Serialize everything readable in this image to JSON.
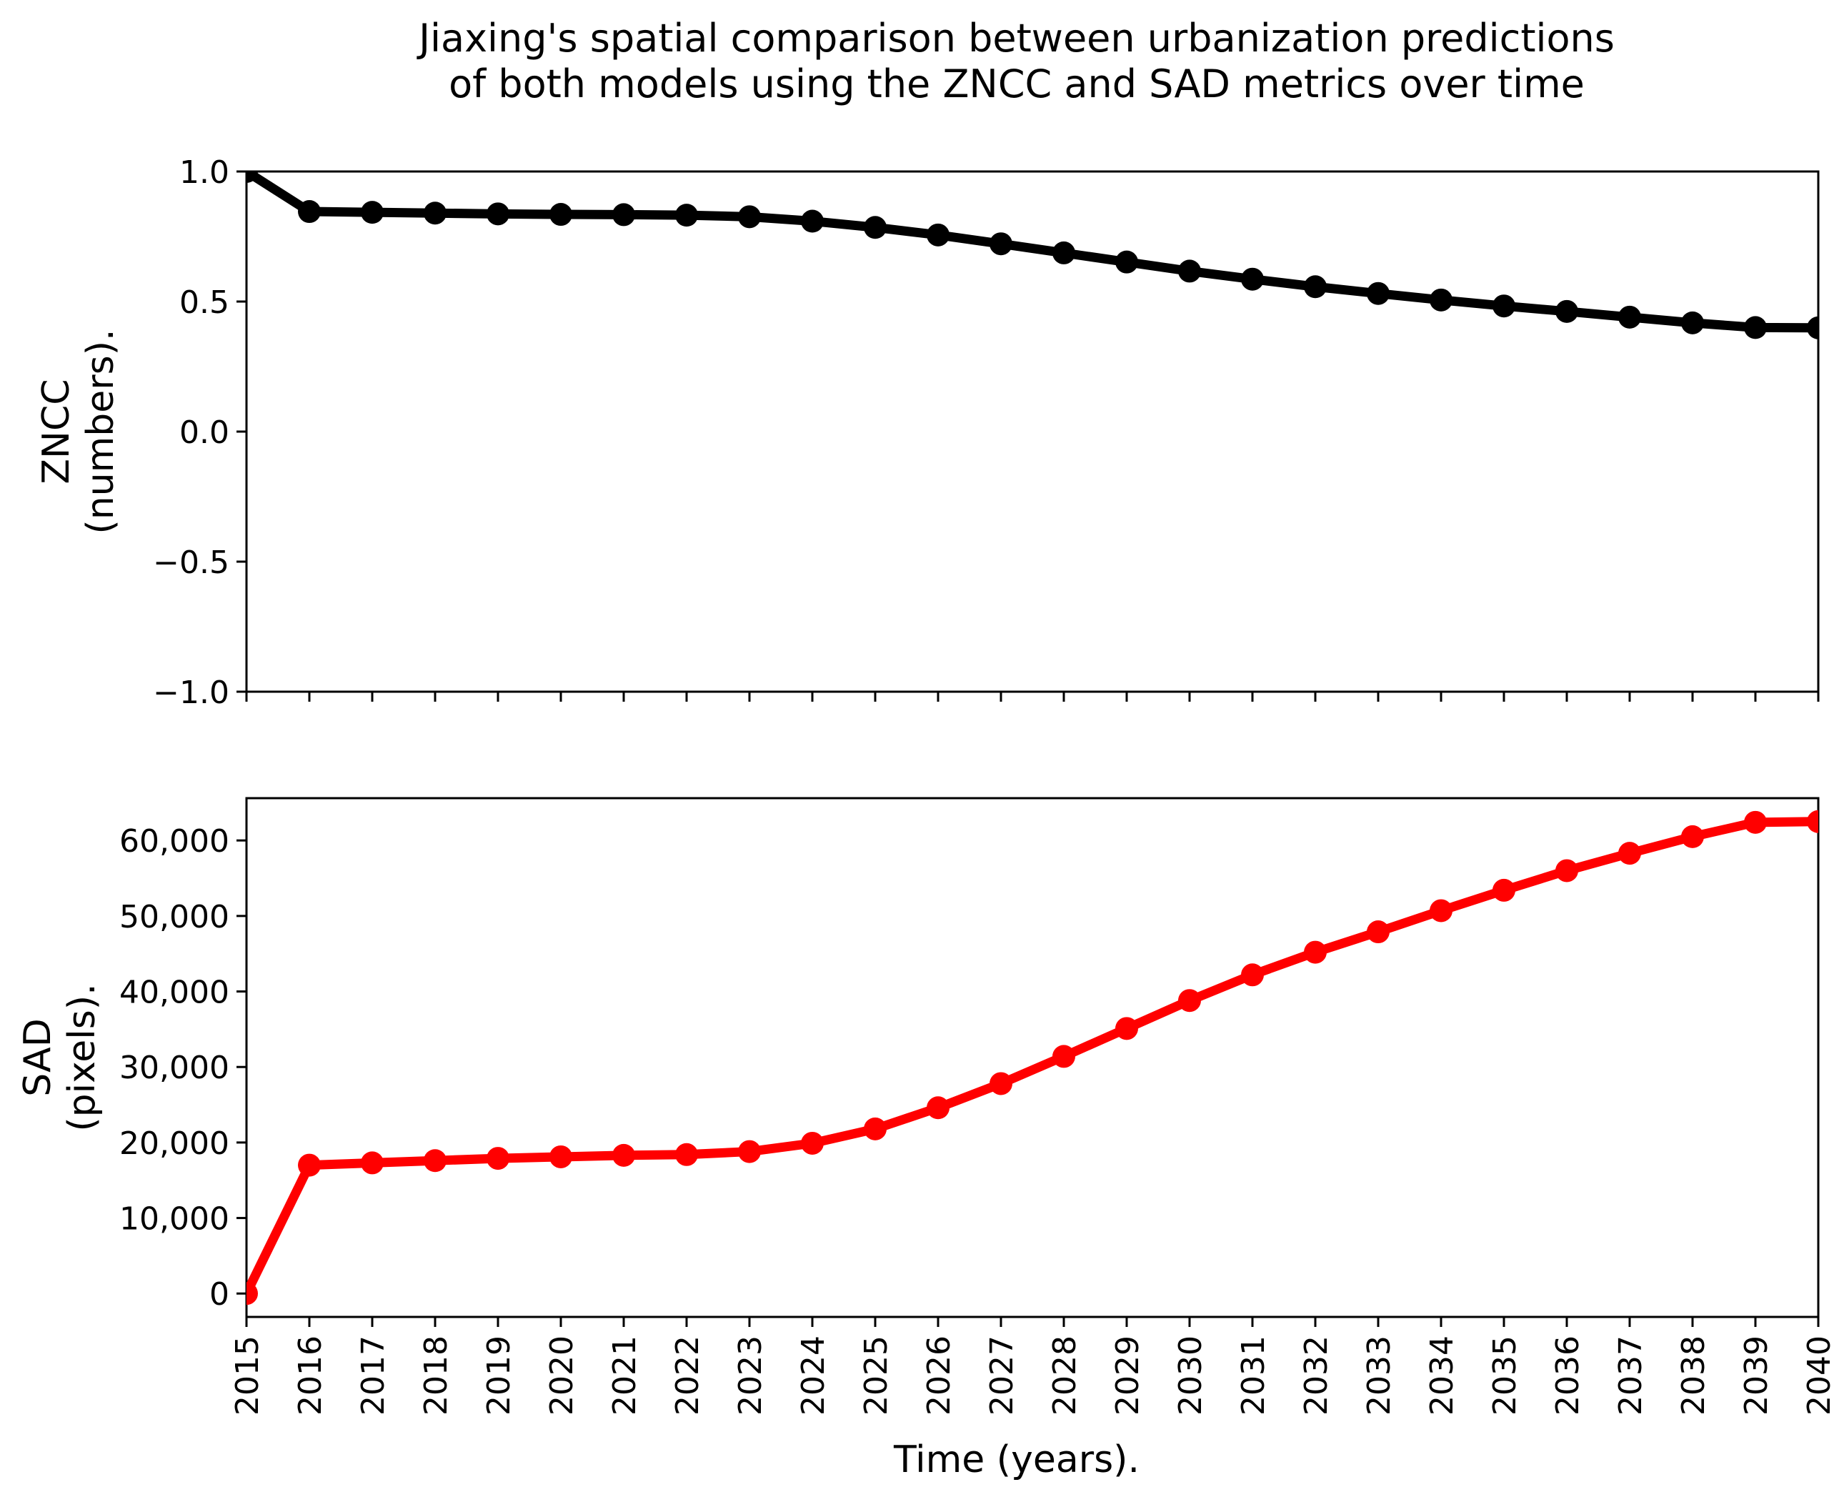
{
  "title_lines": [
    "Jiaxing's spatial comparison between urbanization predictions",
    "of both models using the ZNCC and SAD metrics over time"
  ],
  "xlabel": "Time (years).",
  "colors": {
    "zncc": "#000000",
    "sad": "#ff0000",
    "axes": "#000000"
  },
  "chart_data": [
    {
      "type": "line",
      "name": "zncc-panel",
      "ylabel_lines": [
        "ZNCC",
        "(numbers)."
      ],
      "x": [
        2015,
        2016,
        2017,
        2018,
        2019,
        2020,
        2021,
        2022,
        2023,
        2024,
        2025,
        2026,
        2027,
        2028,
        2029,
        2030,
        2031,
        2032,
        2033,
        2034,
        2035,
        2036,
        2037,
        2038,
        2039,
        2040
      ],
      "values": [
        1.0,
        0.846,
        0.843,
        0.84,
        0.837,
        0.835,
        0.834,
        0.832,
        0.826,
        0.809,
        0.785,
        0.756,
        0.722,
        0.687,
        0.652,
        0.617,
        0.586,
        0.557,
        0.531,
        0.506,
        0.483,
        0.462,
        0.44,
        0.418,
        0.4,
        0.399
      ],
      "xlim": [
        2015,
        2040
      ],
      "ylim": [
        -1.0,
        1.0
      ],
      "yticks": [
        -1.0,
        -0.5,
        0.0,
        0.5,
        1.0
      ],
      "ytick_labels": [
        "−1.0",
        "−0.5",
        "0.0",
        "0.5",
        "1.0"
      ],
      "show_xtick_labels": false
    },
    {
      "type": "line",
      "name": "sad-panel",
      "ylabel_lines": [
        "SAD",
        "(pixels)."
      ],
      "x": [
        2015,
        2016,
        2017,
        2018,
        2019,
        2020,
        2021,
        2022,
        2023,
        2024,
        2025,
        2026,
        2027,
        2028,
        2029,
        2030,
        2031,
        2032,
        2033,
        2034,
        2035,
        2036,
        2037,
        2038,
        2039,
        2040
      ],
      "values": [
        0,
        17000,
        17300,
        17600,
        17900,
        18100,
        18300,
        18400,
        18800,
        19900,
        21800,
        24600,
        27800,
        31400,
        35100,
        38800,
        42200,
        45200,
        47900,
        50700,
        53400,
        56000,
        58300,
        60500,
        62400,
        62500
      ],
      "xlim": [
        2015,
        2040
      ],
      "ylim": [
        -3100,
        65600
      ],
      "yticks": [
        0,
        10000,
        20000,
        30000,
        40000,
        50000,
        60000
      ],
      "ytick_labels": [
        "0",
        "10,000",
        "20,000",
        "30,000",
        "40,000",
        "50,000",
        "60,000"
      ],
      "xtick_labels": [
        "2015",
        "2016",
        "2017",
        "2018",
        "2019",
        "2020",
        "2021",
        "2022",
        "2023",
        "2024",
        "2025",
        "2026",
        "2027",
        "2028",
        "2029",
        "2030",
        "2031",
        "2032",
        "2033",
        "2034",
        "2035",
        "2036",
        "2037",
        "2038",
        "2039",
        "2040"
      ],
      "show_xtick_labels": true
    }
  ]
}
